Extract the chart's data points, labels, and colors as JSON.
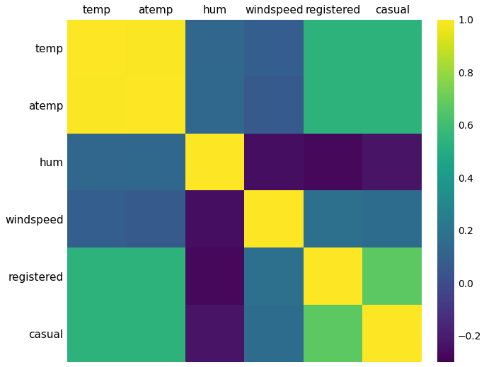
{
  "labels": [
    "temp",
    "atemp",
    "hum",
    "windspeed",
    "registered",
    "casual"
  ],
  "corr_matrix": [
    [
      1.0,
      0.99,
      0.13,
      0.09,
      0.54,
      0.54
    ],
    [
      0.99,
      1.0,
      0.14,
      0.07,
      0.54,
      0.54
    ],
    [
      0.13,
      0.14,
      1.0,
      -0.25,
      -0.27,
      -0.23
    ],
    [
      0.09,
      0.07,
      -0.25,
      1.0,
      0.18,
      0.16
    ],
    [
      0.54,
      0.54,
      -0.27,
      0.18,
      1.0,
      0.67
    ],
    [
      0.54,
      0.54,
      -0.23,
      0.16,
      0.67,
      1.0
    ]
  ],
  "cmap": "viridis",
  "vmin": -0.3,
  "vmax": 1.0,
  "figsize": [
    6.84,
    5.19
  ],
  "dpi": 100,
  "colorbar_ticks": [
    -0.2,
    0.0,
    0.2,
    0.4,
    0.6,
    0.8,
    1.0
  ],
  "bg_color": "#ffffff",
  "tick_fontsize": 11,
  "colorbar_fontsize": 10
}
